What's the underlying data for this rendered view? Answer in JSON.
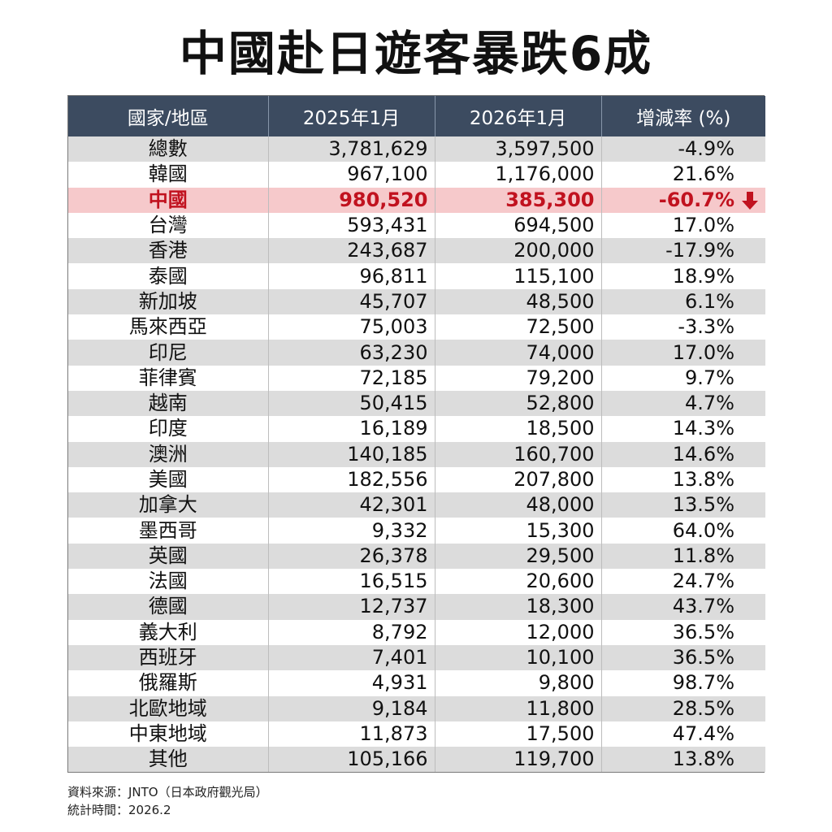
{
  "title": "中國赴日遊客暴跌6成",
  "chart_data": {
    "type": "table",
    "columns": [
      "國家/地區",
      "2025年1月",
      "2026年1月",
      "增減率 (%)"
    ],
    "highlight_row": "中國",
    "highlight_color": "#c1121f",
    "header_color": "#3c4b60",
    "rows": [
      {
        "name": "總數",
        "y2025": "3,781,629",
        "y2026": "3,597,500",
        "rate": "-4.9%"
      },
      {
        "name": "韓國",
        "y2025": "967,100",
        "y2026": "1,176,000",
        "rate": "21.6%"
      },
      {
        "name": "中國",
        "y2025": "980,520",
        "y2026": "385,300",
        "rate": "-60.7%",
        "icon": "down-arrow-icon"
      },
      {
        "name": "台灣",
        "y2025": "593,431",
        "y2026": "694,500",
        "rate": "17.0%"
      },
      {
        "name": "香港",
        "y2025": "243,687",
        "y2026": "200,000",
        "rate": "-17.9%"
      },
      {
        "name": "泰國",
        "y2025": "96,811",
        "y2026": "115,100",
        "rate": "18.9%"
      },
      {
        "name": "新加坡",
        "y2025": "45,707",
        "y2026": "48,500",
        "rate": "6.1%"
      },
      {
        "name": "馬來西亞",
        "y2025": "75,003",
        "y2026": "72,500",
        "rate": "-3.3%"
      },
      {
        "name": "印尼",
        "y2025": "63,230",
        "y2026": "74,000",
        "rate": "17.0%"
      },
      {
        "name": "菲律賓",
        "y2025": "72,185",
        "y2026": "79,200",
        "rate": "9.7%"
      },
      {
        "name": "越南",
        "y2025": "50,415",
        "y2026": "52,800",
        "rate": "4.7%"
      },
      {
        "name": "印度",
        "y2025": "16,189",
        "y2026": "18,500",
        "rate": "14.3%"
      },
      {
        "name": "澳洲",
        "y2025": "140,185",
        "y2026": "160,700",
        "rate": "14.6%"
      },
      {
        "name": "美國",
        "y2025": "182,556",
        "y2026": "207,800",
        "rate": "13.8%"
      },
      {
        "name": "加拿大",
        "y2025": "42,301",
        "y2026": "48,000",
        "rate": "13.5%"
      },
      {
        "name": "墨西哥",
        "y2025": "9,332",
        "y2026": "15,300",
        "rate": "64.0%"
      },
      {
        "name": "英國",
        "y2025": "26,378",
        "y2026": "29,500",
        "rate": "11.8%"
      },
      {
        "name": "法國",
        "y2025": "16,515",
        "y2026": "20,600",
        "rate": "24.7%"
      },
      {
        "name": "德國",
        "y2025": "12,737",
        "y2026": "18,300",
        "rate": "43.7%"
      },
      {
        "name": "義大利",
        "y2025": "8,792",
        "y2026": "12,000",
        "rate": "36.5%"
      },
      {
        "name": "西班牙",
        "y2025": "7,401",
        "y2026": "10,100",
        "rate": "36.5%"
      },
      {
        "name": "俄羅斯",
        "y2025": "4,931",
        "y2026": "9,800",
        "rate": "98.7%"
      },
      {
        "name": "北歐地域",
        "y2025": "9,184",
        "y2026": "11,800",
        "rate": "28.5%"
      },
      {
        "name": "中東地域",
        "y2025": "11,873",
        "y2026": "17,500",
        "rate": "47.4%"
      },
      {
        "name": "其他",
        "y2025": "105,166",
        "y2026": "119,700",
        "rate": "13.8%"
      }
    ]
  },
  "footnote": {
    "source": "資料來源：JNTO（日本政府觀光局）",
    "date": "統計時間：2026.2"
  }
}
